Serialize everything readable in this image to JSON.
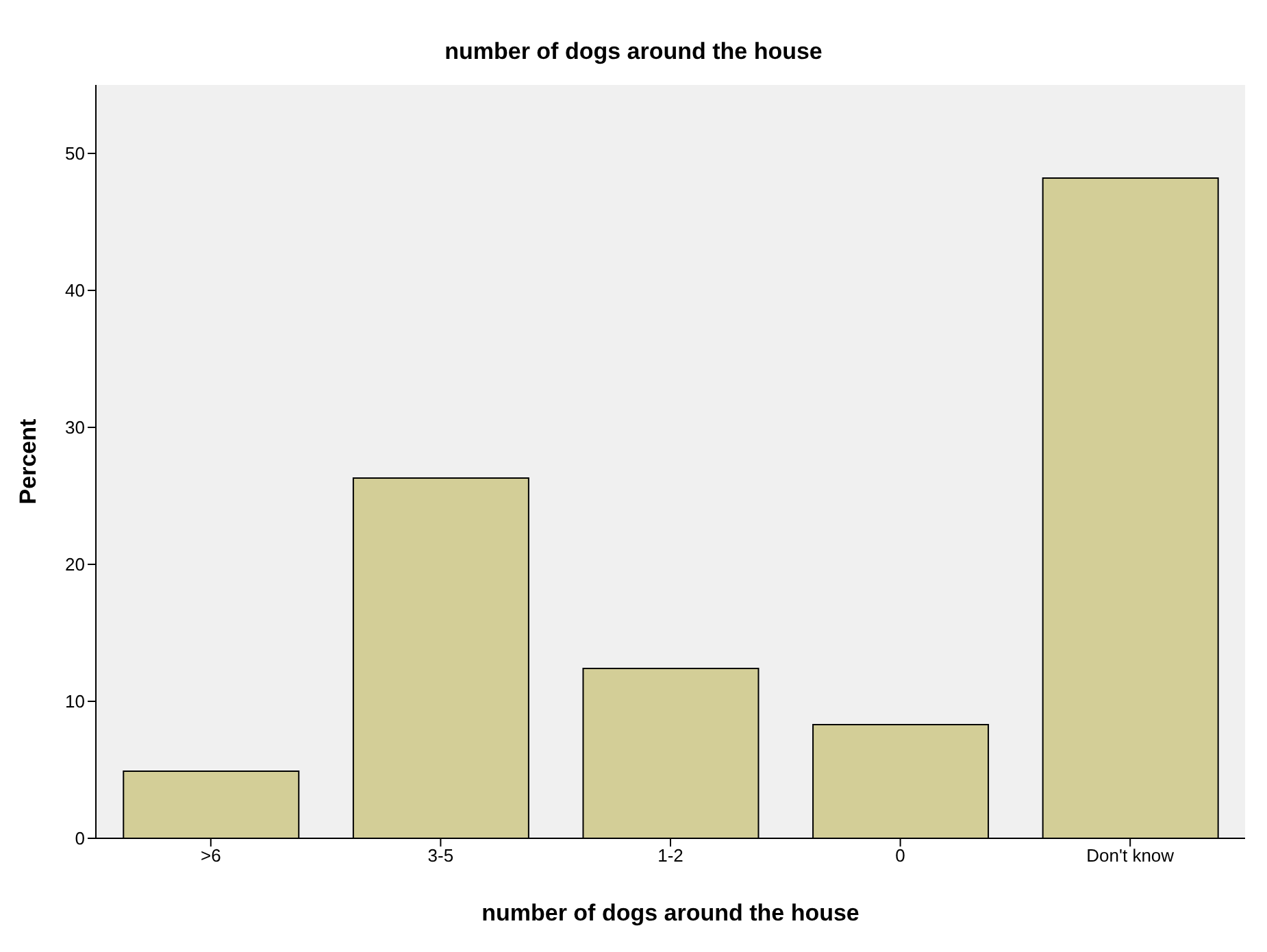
{
  "chart_data": {
    "type": "bar",
    "title": "number of dogs around the house",
    "xlabel": "number of dogs around the house",
    "ylabel": "Percent",
    "categories": [
      ">6",
      "3-5",
      "1-2",
      "0",
      "Don't know"
    ],
    "values": [
      4.9,
      26.3,
      12.4,
      8.3,
      48.2
    ],
    "color": "#d3ce97",
    "ylim": [
      0,
      55
    ],
    "yticks": [
      0,
      10,
      20,
      30,
      40,
      50
    ],
    "grid": false
  }
}
